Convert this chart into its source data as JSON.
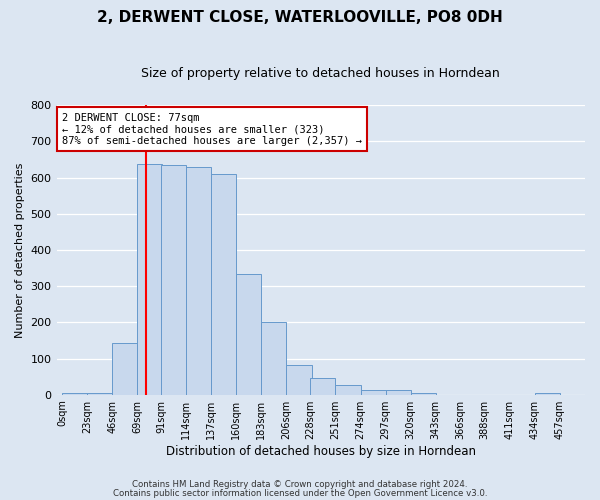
{
  "title": "2, DERWENT CLOSE, WATERLOOVILLE, PO8 0DH",
  "subtitle": "Size of property relative to detached houses in Horndean",
  "xlabel": "Distribution of detached houses by size in Horndean",
  "ylabel": "Number of detached properties",
  "bar_color": "#c8d8ed",
  "bar_edge_color": "#6699cc",
  "bins_left": [
    0,
    23,
    46,
    69,
    91,
    114,
    137,
    160,
    183,
    206,
    228,
    251,
    274,
    297,
    320,
    343,
    366,
    388,
    411,
    434
  ],
  "bar_heights": [
    5,
    5,
    142,
    637,
    635,
    630,
    610,
    333,
    202,
    83,
    45,
    28,
    12,
    12,
    5,
    0,
    0,
    0,
    0,
    5
  ],
  "tick_labels": [
    "0sqm",
    "23sqm",
    "46sqm",
    "69sqm",
    "91sqm",
    "114sqm",
    "137sqm",
    "160sqm",
    "183sqm",
    "206sqm",
    "228sqm",
    "251sqm",
    "274sqm",
    "297sqm",
    "320sqm",
    "343sqm",
    "366sqm",
    "388sqm",
    "411sqm",
    "434sqm",
    "457sqm"
  ],
  "tick_positions": [
    0,
    23,
    46,
    69,
    91,
    114,
    137,
    160,
    183,
    206,
    228,
    251,
    274,
    297,
    320,
    343,
    366,
    388,
    411,
    434,
    457
  ],
  "red_line_x": 77,
  "ylim": [
    0,
    800
  ],
  "yticks": [
    0,
    100,
    200,
    300,
    400,
    500,
    600,
    700,
    800
  ],
  "annotation_title": "2 DERWENT CLOSE: 77sqm",
  "annotation_line1": "← 12% of detached houses are smaller (323)",
  "annotation_line2": "87% of semi-detached houses are larger (2,357) →",
  "annotation_box_color": "#ffffff",
  "annotation_box_edge": "#cc0000",
  "bg_color": "#dce6f2",
  "fig_bg_color": "#dce6f2",
  "grid_color": "#ffffff",
  "footer1": "Contains HM Land Registry data © Crown copyright and database right 2024.",
  "footer2": "Contains public sector information licensed under the Open Government Licence v3.0."
}
